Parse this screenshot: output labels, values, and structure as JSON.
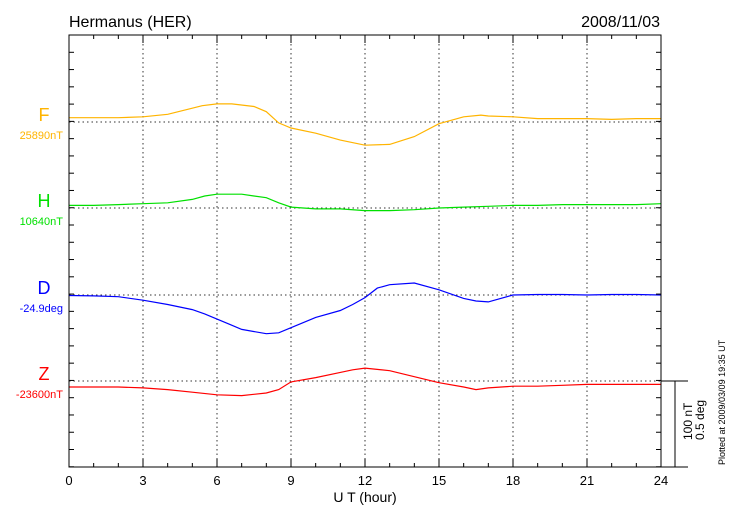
{
  "chart_data": {
    "type": "line",
    "title": "Hermanus (HER)",
    "date": "2008/11/03",
    "xlabel": "U T (hour)",
    "xlim": [
      0,
      24
    ],
    "xticks": [
      "0",
      "3",
      "6",
      "9",
      "12",
      "15",
      "18",
      "21",
      "24"
    ],
    "grid": true,
    "scale_bar": {
      "nT": "100 nT",
      "deg": "0.5 deg"
    },
    "footer": "Plotted at 2009/03/09 19:35 UT",
    "series": [
      {
        "name": "F",
        "baseline_label": "25890nT",
        "baseline": 25890,
        "unit": "nT",
        "color": "#ffb400",
        "x": [
          0,
          1,
          2,
          3,
          4,
          5,
          5.4,
          6,
          6.6,
          7.5,
          8,
          8.5,
          9,
          10,
          11,
          12,
          13,
          14,
          15,
          16,
          16.7,
          17,
          18,
          19,
          20,
          21,
          22,
          23,
          24
        ],
        "y": [
          25895,
          25895,
          25895,
          25896,
          25899,
          25906,
          25909,
          25911,
          25911,
          25908,
          25902,
          25889,
          25883,
          25877,
          25869,
          25863,
          25864,
          25873,
          25888,
          25896,
          25898,
          25897,
          25896,
          25894,
          25894,
          25894,
          25893,
          25894,
          25894
        ]
      },
      {
        "name": "H",
        "baseline_label": "10640nT",
        "baseline": 10640,
        "unit": "nT",
        "color": "#00e000",
        "x": [
          0,
          1,
          2,
          3,
          4,
          5,
          5.5,
          6,
          7,
          7.5,
          8,
          8.5,
          9,
          10,
          11,
          12,
          13,
          14,
          15,
          16,
          17,
          18,
          19,
          20,
          21,
          22,
          23,
          24
        ],
        "y": [
          10643,
          10643,
          10644,
          10645,
          10646,
          10650,
          10654,
          10656,
          10656,
          10654,
          10652,
          10646,
          10641,
          10639,
          10639,
          10637,
          10637,
          10638,
          10640,
          10641,
          10642,
          10643,
          10643,
          10644,
          10644,
          10644,
          10644,
          10645
        ]
      },
      {
        "name": "D",
        "baseline_label": "-24.9deg",
        "baseline": -24.9,
        "unit": "deg",
        "color": "#0000ff",
        "x": [
          0,
          1,
          2,
          3,
          4,
          5,
          5.5,
          6,
          6.5,
          7,
          8,
          8.5,
          9,
          10,
          11,
          11.5,
          12,
          12.5,
          13,
          14,
          15,
          16,
          16.5,
          17,
          18,
          19,
          20,
          21,
          22,
          23,
          24
        ],
        "y": [
          -24.903,
          -24.905,
          -24.91,
          -24.93,
          -24.955,
          -24.985,
          -25.01,
          -25.04,
          -25.07,
          -25.1,
          -25.125,
          -25.12,
          -25.09,
          -25.03,
          -24.99,
          -24.955,
          -24.915,
          -24.86,
          -24.84,
          -24.83,
          -24.87,
          -24.92,
          -24.935,
          -24.94,
          -24.9,
          -24.897,
          -24.897,
          -24.9,
          -24.897,
          -24.897,
          -24.9
        ]
      },
      {
        "name": "Z",
        "baseline_label": "-23600nT",
        "baseline": -23600,
        "unit": "nT",
        "color": "#ff0000",
        "x": [
          0,
          1,
          2,
          3,
          4,
          5,
          6,
          7,
          8,
          8.5,
          9,
          10,
          11,
          11.5,
          12,
          13,
          14,
          15,
          16,
          16.5,
          17,
          18,
          19,
          20,
          21,
          22,
          23,
          24
        ],
        "y": [
          -23607,
          -23607,
          -23607,
          -23608,
          -23610,
          -23613,
          -23616,
          -23617,
          -23614,
          -23610,
          -23601,
          -23596,
          -23590,
          -23587,
          -23585,
          -23588,
          -23595,
          -23602,
          -23607,
          -23610,
          -23608,
          -23606,
          -23606,
          -23605,
          -23604,
          -23604,
          -23604,
          -23604
        ]
      }
    ]
  }
}
